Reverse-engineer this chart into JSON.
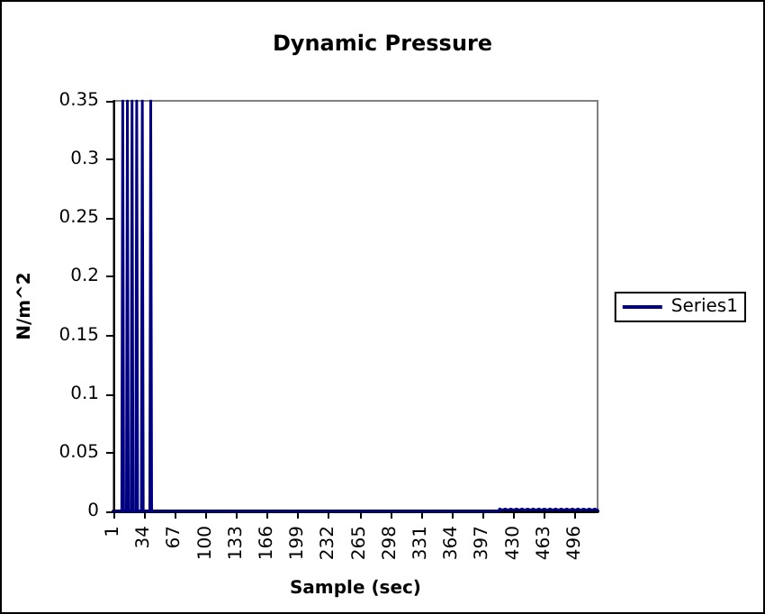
{
  "chart_data": {
    "type": "line",
    "title": "Dynamic Pressure",
    "xlabel": "Sample (sec)",
    "ylabel": "N/m^2",
    "xlim": [
      1,
      520
    ],
    "xticks": [
      1,
      34,
      67,
      100,
      133,
      166,
      199,
      232,
      265,
      298,
      331,
      364,
      397,
      430,
      463,
      496
    ],
    "ylim": [
      0,
      0.35
    ],
    "yticks": [
      0,
      0.05,
      0.1,
      0.15,
      0.2,
      0.25,
      0.3,
      0.35
    ],
    "grid": false,
    "legend": "right",
    "marker": "none",
    "line_style": "solid",
    "series": [
      {
        "name": "Series1",
        "color": "#000080",
        "x": [
          1,
          10,
          11,
          12,
          15,
          16,
          17,
          20,
          21,
          22,
          25,
          26,
          27,
          31,
          32,
          33,
          40,
          41,
          42,
          414,
          415,
          418,
          421,
          424,
          427,
          430,
          433,
          436,
          439,
          442,
          445,
          448,
          451,
          454,
          457,
          460,
          463,
          466,
          469,
          472,
          475,
          478,
          481,
          484,
          487,
          490,
          493,
          496,
          499,
          502,
          505,
          508,
          511,
          514,
          517,
          520
        ],
        "values": [
          0,
          0,
          0.35,
          0,
          0,
          0.35,
          0,
          0,
          0.35,
          0,
          0,
          0.35,
          0,
          0,
          0.35,
          0,
          0,
          0.35,
          0,
          0,
          0.002,
          0.001,
          0.002,
          0.001,
          0.002,
          0.001,
          0.002,
          0.001,
          0.002,
          0.001,
          0.002,
          0.001,
          0.002,
          0.001,
          0.002,
          0.001,
          0.002,
          0.001,
          0.002,
          0.001,
          0.002,
          0.001,
          0.002,
          0.001,
          0.002,
          0.001,
          0.002,
          0.001,
          0.002,
          0.001,
          0.002,
          0.001,
          0.002,
          0.001,
          0.002,
          0.001
        ]
      }
    ]
  }
}
